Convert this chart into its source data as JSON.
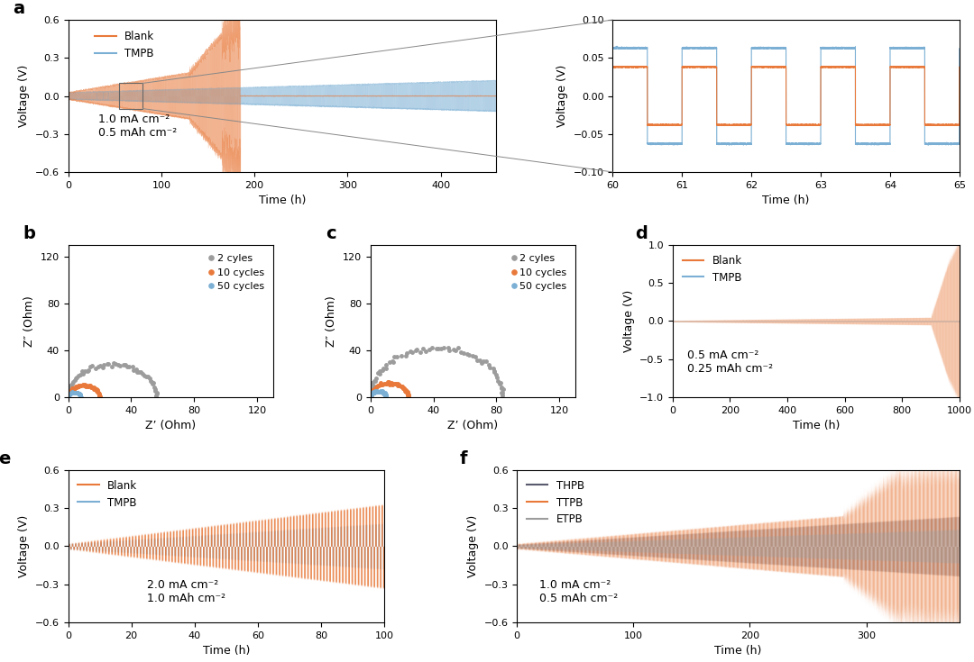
{
  "panel_a": {
    "title": "a",
    "xlabel": "Time (h)",
    "ylabel": "Voltage (V)",
    "xlim": [
      0,
      460
    ],
    "ylim": [
      -0.6,
      0.6
    ],
    "yticks": [
      -0.6,
      -0.3,
      0.0,
      0.3,
      0.6
    ],
    "xticks": [
      0,
      100,
      200,
      300,
      400
    ],
    "annotation": "1.0 mA cm⁻²\n0.5 mAh cm⁻²",
    "blank_color": "#E8793A",
    "tmpb_color": "#7BAFD4",
    "legend": [
      "Blank",
      "TMPB"
    ]
  },
  "panel_a_inset": {
    "xlabel": "Time (h)",
    "ylabel": "Voltage (V)",
    "xlim": [
      60,
      65
    ],
    "ylim": [
      -0.1,
      0.1
    ],
    "yticks": [
      -0.1,
      -0.05,
      0.0,
      0.05,
      0.1
    ],
    "xticks": [
      60,
      61,
      62,
      63,
      64,
      65
    ]
  },
  "panel_b": {
    "title": "b",
    "xlabel": "Z’ (Ohm)",
    "ylabel": "Z″ (Ohm)",
    "xlim": [
      0,
      130
    ],
    "ylim": [
      0,
      130
    ],
    "xticks": [
      0,
      40,
      80,
      120
    ],
    "yticks": [
      0,
      40,
      80,
      120
    ],
    "legend": [
      "2 cyles",
      "10 cycles",
      "50 cycles"
    ],
    "colors": [
      "#9C9C9C",
      "#E8793A",
      "#7BAFD4"
    ]
  },
  "panel_c": {
    "title": "c",
    "xlabel": "Z’ (Ohm)",
    "ylabel": "Z″ (Ohm)",
    "xlim": [
      0,
      130
    ],
    "ylim": [
      0,
      130
    ],
    "xticks": [
      0,
      40,
      80,
      120
    ],
    "yticks": [
      0,
      40,
      80,
      120
    ],
    "legend": [
      "2 cyles",
      "10 cycles",
      "50 cycles"
    ],
    "colors": [
      "#9C9C9C",
      "#E8793A",
      "#7BAFD4"
    ]
  },
  "panel_d": {
    "title": "d",
    "xlabel": "Time (h)",
    "ylabel": "Voltage (V)",
    "xlim": [
      0,
      1000
    ],
    "ylim": [
      -1.0,
      1.0
    ],
    "yticks": [
      -1.0,
      -0.5,
      0.0,
      0.5,
      1.0
    ],
    "xticks": [
      0,
      200,
      400,
      600,
      800,
      1000
    ],
    "annotation": "0.5 mA cm⁻²\n0.25 mAh cm⁻²",
    "blank_color": "#E8793A",
    "tmpb_color": "#7BAFD4",
    "legend": [
      "Blank",
      "TMPB"
    ]
  },
  "panel_e": {
    "title": "e",
    "xlabel": "Time (h)",
    "ylabel": "Voltage (V)",
    "xlim": [
      0,
      100
    ],
    "ylim": [
      -0.6,
      0.6
    ],
    "yticks": [
      -0.6,
      -0.3,
      0.0,
      0.3,
      0.6
    ],
    "xticks": [
      0,
      20,
      40,
      60,
      80,
      100
    ],
    "annotation": "2.0 mA cm⁻²\n1.0 mAh cm⁻²",
    "blank_color": "#E8793A",
    "tmpb_color": "#7BAFD4",
    "legend": [
      "Blank",
      "TMPB"
    ]
  },
  "panel_f": {
    "title": "f",
    "xlabel": "Time (h)",
    "ylabel": "Voltage (V)",
    "xlim": [
      0,
      380
    ],
    "ylim": [
      -0.6,
      0.6
    ],
    "yticks": [
      -0.6,
      -0.3,
      0.0,
      0.3,
      0.6
    ],
    "xticks": [
      0,
      100,
      200,
      300
    ],
    "annotation": "1.0 mA cm⁻²\n0.5 mAh cm⁻²",
    "thpb_color": "#5A5A6E",
    "ttpb_color": "#E8793A",
    "etpb_color": "#9C9C9C",
    "legend": [
      "THPB",
      "TTPB",
      "ETPB"
    ]
  },
  "colors": {
    "orange": "#E8793A",
    "blue": "#7BAFD4",
    "gray": "#9C9C9C",
    "dark_gray": "#5A5A6E"
  }
}
